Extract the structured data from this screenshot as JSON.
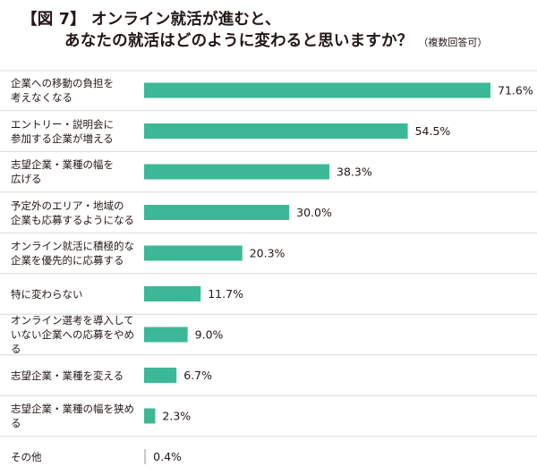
{
  "title": {
    "line1": "【図 7】 オンライン就活が進むと、",
    "line2": "あなたの就活はどのように変わると思いますか？",
    "note": "（複数回答可）"
  },
  "colors": {
    "bar": "#3db896",
    "minor_bar": "#c9c9c9",
    "divider": "#d9d9d9"
  },
  "chart_data": {
    "type": "bar",
    "orientation": "horizontal",
    "unit": "%",
    "xlim": [
      0,
      75
    ],
    "grid": false,
    "categories": [
      "企業への移動の負担を\n考えなくなる",
      "エントリー・説明会に\n参加する企業が増える",
      "志望企業・業種の幅を\n広げる",
      "予定外のエリア・地域の\n企業も応募するようになる",
      "オンライン就活に積極的な\n企業を優先的に応募する",
      "特に変わらない",
      "オンライン選考を導入して\nいない企業への応募をやめる",
      "志望企業・業種を変える",
      "志望企業・業種の幅を狭める",
      "その他"
    ],
    "values": [
      71.6,
      54.5,
      38.3,
      30.0,
      20.3,
      11.7,
      9.0,
      6.7,
      2.3,
      0.4
    ],
    "value_labels": [
      "71.6%",
      "54.5%",
      "38.3%",
      "30.0%",
      "20.3%",
      "11.7%",
      "9.0%",
      "6.7%",
      "2.3%",
      "0.4%"
    ]
  }
}
